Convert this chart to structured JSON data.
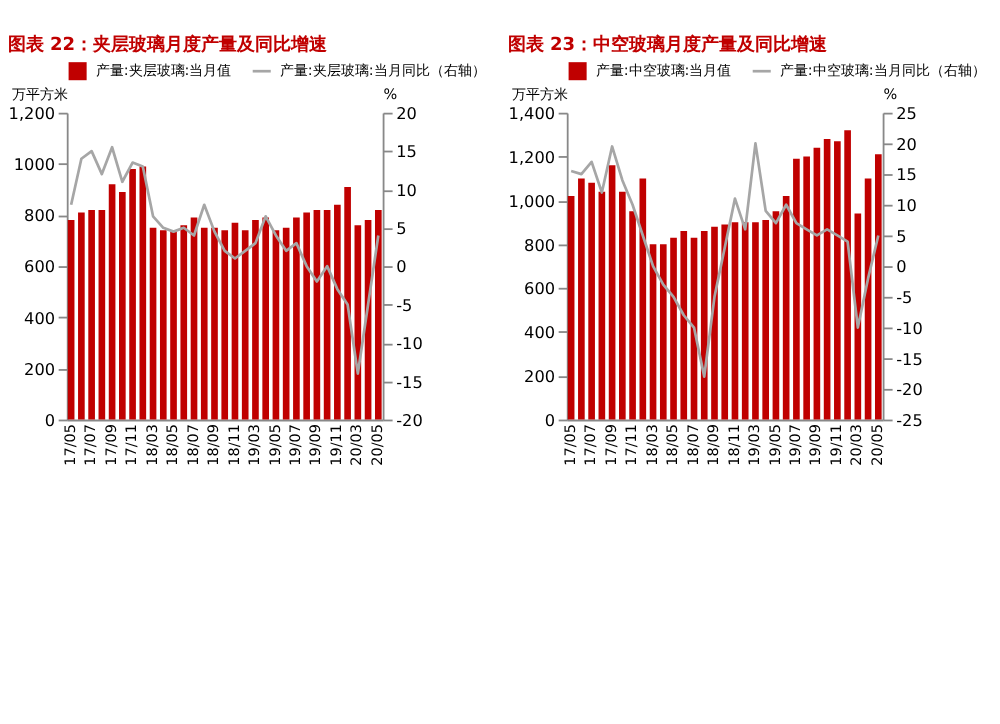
{
  "chart_data": [
    {
      "type": "bar",
      "title": "图表 22：夹层玻璃月度产量及同比增速",
      "ylabel": "万平方米",
      "y2label": "%",
      "categories": [
        "17/05",
        null,
        "17/07",
        null,
        "17/09",
        null,
        "17/11",
        null,
        "18/03",
        null,
        "18/05",
        null,
        "18/07",
        null,
        "18/09",
        null,
        "18/11",
        null,
        "19/03",
        null,
        "19/05",
        null,
        "19/07",
        null,
        "19/09",
        null,
        "19/11",
        null,
        "20/03",
        null,
        "20/05"
      ],
      "series": [
        {
          "name": "产量:夹层玻璃:当月值",
          "color": "#c00000",
          "values": [
            780,
            810,
            820,
            820,
            920,
            890,
            980,
            990,
            750,
            740,
            740,
            760,
            790,
            750,
            750,
            740,
            770,
            740,
            780,
            790,
            740,
            750,
            790,
            810,
            820,
            820,
            840,
            910,
            760,
            780,
            820
          ]
        },
        {
          "name": "产量:夹层玻璃:当月同比（右轴）",
          "type": "line",
          "axis": "y2",
          "color": "#a6a6a6",
          "values": [
            8,
            14,
            15,
            12,
            15.5,
            11,
            13.5,
            13,
            6.5,
            5,
            4.5,
            5,
            4,
            8,
            4.5,
            2,
            1,
            2,
            3,
            6.5,
            4,
            2,
            3,
            0,
            -2,
            0,
            -3,
            -5,
            -14,
            -5,
            4
          ]
        }
      ],
      "ylim": [
        0,
        1200
      ],
      "yticks": [
        0,
        200,
        400,
        600,
        800,
        1000,
        {
          "value": 1200,
          "label": "1,200"
        }
      ],
      "y2lim": [
        -20,
        20
      ],
      "y2ticks": [
        -20,
        -15,
        -10,
        -5,
        0,
        5,
        10,
        15,
        20
      ],
      "legend": "top",
      "grid": false,
      "marker": "none",
      "line_style": "solid"
    },
    {
      "type": "bar",
      "title": "图表 23：中空玻璃月度产量及同比增速",
      "ylabel": "万平方米",
      "y2label": "%",
      "categories": [
        "17/05",
        null,
        "17/07",
        null,
        "17/09",
        null,
        "17/11",
        null,
        "18/03",
        null,
        "18/05",
        null,
        "18/07",
        null,
        "18/09",
        null,
        "18/11",
        null,
        "19/03",
        null,
        "19/05",
        null,
        "19/07",
        null,
        "19/09",
        null,
        "19/11",
        null,
        "20/03",
        null,
        "20/05"
      ],
      "series": [
        {
          "name": "产量:中空玻璃:当月值",
          "color": "#c00000",
          "values": [
            1020,
            1100,
            1080,
            1040,
            1160,
            1040,
            950,
            1100,
            800,
            800,
            830,
            860,
            830,
            860,
            880,
            890,
            900,
            900,
            900,
            910,
            950,
            1020,
            1190,
            1200,
            1240,
            1280,
            1270,
            1320,
            940,
            1100,
            1210
          ]
        },
        {
          "name": "产量:中空玻璃:当月同比（右轴）",
          "type": "line",
          "axis": "y2",
          "color": "#a6a6a6",
          "values": [
            15.5,
            15,
            17,
            12,
            19.5,
            14,
            10,
            5,
            0,
            -3,
            -5,
            -8,
            -10,
            -18,
            -5,
            3,
            11,
            6,
            20,
            9,
            7,
            10,
            7,
            6,
            5,
            6,
            5,
            4,
            -10,
            -2,
            5
          ]
        }
      ],
      "ylim": [
        0,
        1400
      ],
      "yticks": [
        0,
        200,
        400,
        600,
        800,
        {
          "value": 1000,
          "label": "1,000"
        },
        {
          "value": 1200,
          "label": "1,200"
        },
        {
          "value": 1400,
          "label": "1,400"
        }
      ],
      "y2lim": [
        -25,
        25
      ],
      "y2ticks": [
        -25,
        -20,
        -15,
        -10,
        -5,
        0,
        5,
        10,
        15,
        20,
        25
      ],
      "legend": "top",
      "grid": false,
      "marker": "none",
      "line_style": "solid"
    }
  ]
}
